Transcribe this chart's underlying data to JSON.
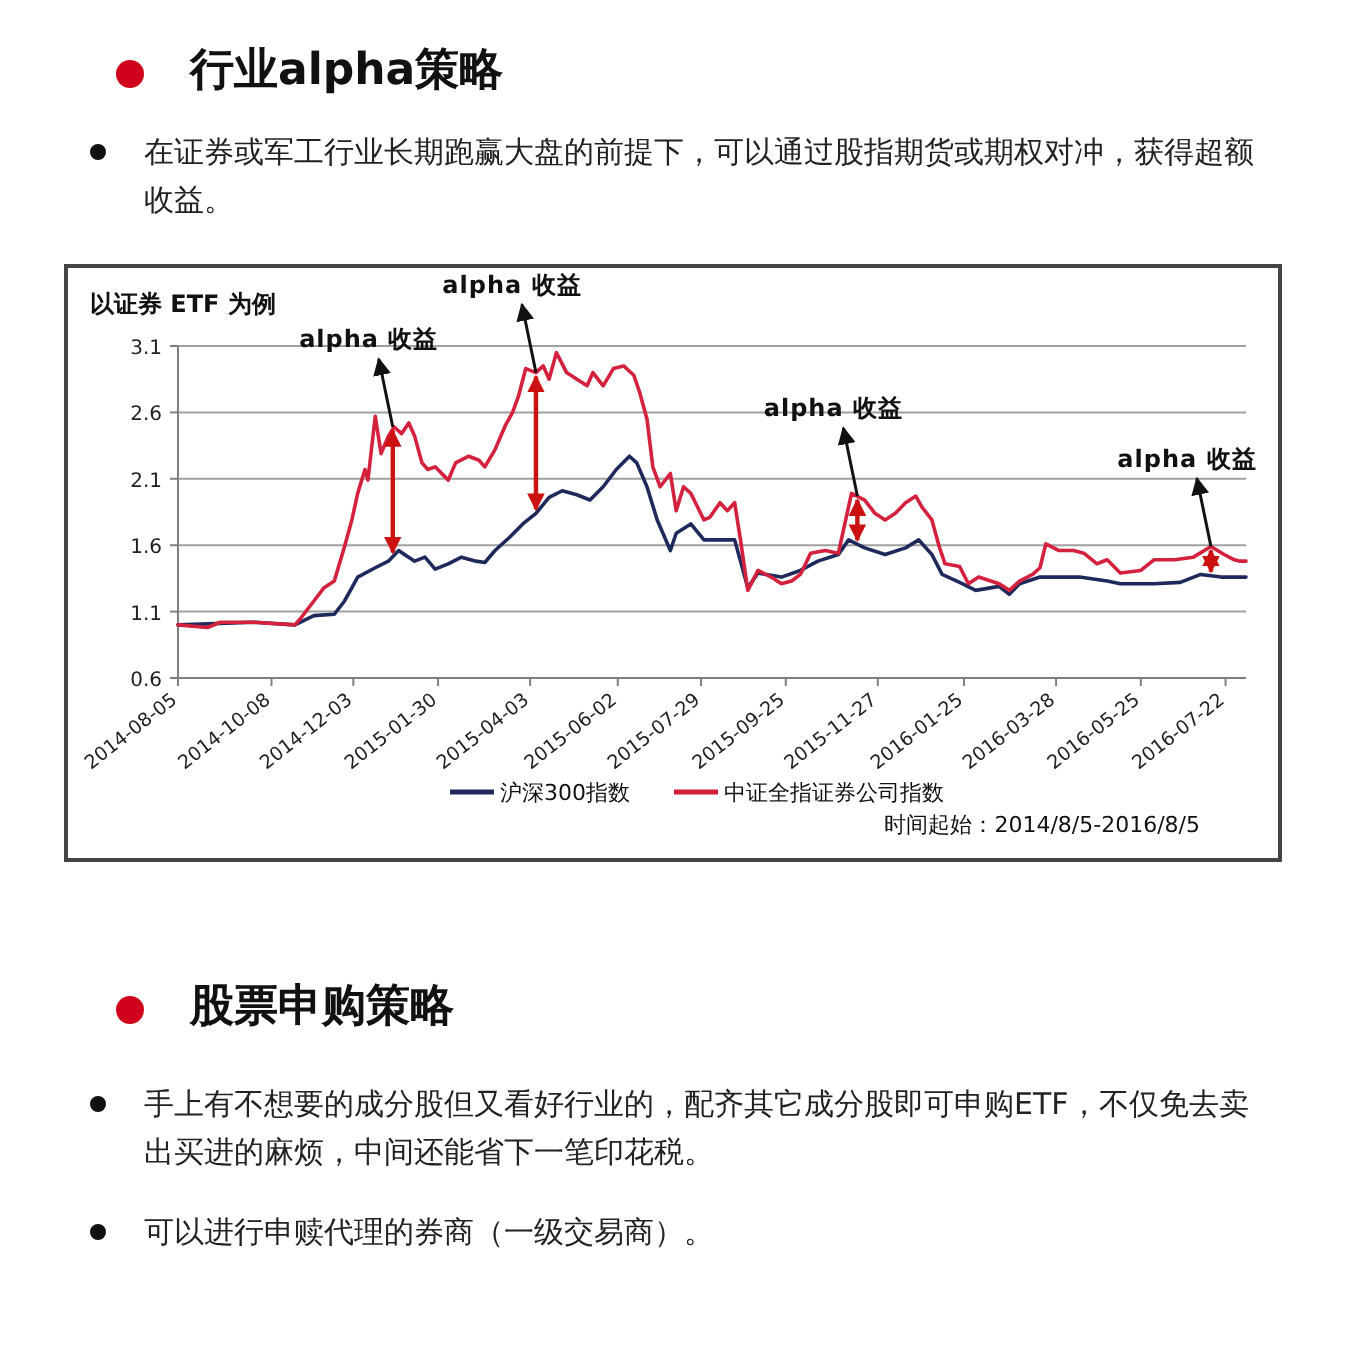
{
  "chart_data": {
    "type": "line",
    "title": "以证券 ETF 为例",
    "xlim": [
      "2014-08-05",
      "2016-08-05"
    ],
    "xticks": [
      "2014-08-05",
      "2014-10-08",
      "2014-12-03",
      "2015-01-30",
      "2015-04-03",
      "2015-06-02",
      "2015-07-29",
      "2015-09-25",
      "2015-11-27",
      "2016-01-25",
      "2016-03-28",
      "2016-05-25",
      "2016-07-22"
    ],
    "ylim": [
      0.6,
      3.1
    ],
    "yticks": [
      0.6,
      1.1,
      1.6,
      2.1,
      2.6,
      3.1
    ],
    "grid": "y",
    "legend": "bottom",
    "marker": "none",
    "line_style": "solid",
    "series": [
      {
        "name": "沪深300指数",
        "color": "#1f2a5c",
        "x": [
          "2014-08-05",
          "2014-09-26",
          "2014-10-24",
          "2014-11-06",
          "2014-11-20",
          "2014-11-27",
          "2014-12-06",
          "2014-12-18",
          "2014-12-27",
          "2015-01-03",
          "2015-01-07",
          "2015-01-14",
          "2015-01-21",
          "2015-01-28",
          "2015-02-06",
          "2015-02-15",
          "2015-02-25",
          "2015-03-03",
          "2015-03-10",
          "2015-03-20",
          "2015-03-29",
          "2015-04-07",
          "2015-04-16",
          "2015-04-25",
          "2015-05-05",
          "2015-05-14",
          "2015-05-23",
          "2015-06-01",
          "2015-06-10",
          "2015-06-15",
          "2015-06-22",
          "2015-06-29",
          "2015-07-08",
          "2015-07-12",
          "2015-07-22",
          "2015-07-31",
          "2015-08-09",
          "2015-08-21",
          "2015-08-25",
          "2015-08-30",
          "2015-09-06",
          "2015-09-22",
          "2015-10-05",
          "2015-10-17",
          "2015-10-31",
          "2015-11-07",
          "2015-11-18",
          "2015-12-02",
          "2015-12-16",
          "2015-12-25",
          "2016-01-03",
          "2016-01-10",
          "2016-01-22",
          "2016-02-02",
          "2016-02-18",
          "2016-02-25",
          "2016-03-03",
          "2016-03-17",
          "2016-03-30",
          "2016-04-13",
          "2016-05-02",
          "2016-05-11",
          "2016-06-03",
          "2016-06-21",
          "2016-07-05",
          "2016-07-19",
          "2016-08-01",
          "2016-08-05"
        ],
        "values": [
          1.0,
          1.02,
          1.0,
          1.07,
          1.08,
          1.18,
          1.36,
          1.43,
          1.48,
          1.56,
          1.53,
          1.48,
          1.51,
          1.42,
          1.46,
          1.51,
          1.48,
          1.47,
          1.56,
          1.66,
          1.76,
          1.84,
          1.96,
          2.01,
          1.98,
          1.94,
          2.04,
          2.17,
          2.27,
          2.22,
          2.04,
          1.79,
          1.56,
          1.69,
          1.76,
          1.64,
          1.64,
          1.64,
          1.48,
          1.28,
          1.39,
          1.36,
          1.41,
          1.48,
          1.53,
          1.64,
          1.58,
          1.53,
          1.58,
          1.64,
          1.53,
          1.38,
          1.32,
          1.26,
          1.29,
          1.23,
          1.31,
          1.36,
          1.36,
          1.36,
          1.33,
          1.31,
          1.31,
          1.32,
          1.38,
          1.36,
          1.36,
          1.36
        ]
      },
      {
        "name": "中证全指证券公司指数",
        "color": "#d4213d",
        "x": [
          "2014-08-05",
          "2014-08-25",
          "2014-09-03",
          "2014-09-26",
          "2014-10-24",
          "2014-10-28",
          "2014-11-06",
          "2014-11-13",
          "2014-11-20",
          "2014-11-27",
          "2014-12-02",
          "2014-12-06",
          "2014-12-11",
          "2014-12-13",
          "2014-12-18",
          "2014-12-22",
          "2014-12-27",
          "2014-12-31",
          "2015-01-05",
          "2015-01-10",
          "2015-01-14",
          "2015-01-19",
          "2015-01-23",
          "2015-01-28",
          "2015-02-06",
          "2015-02-11",
          "2015-02-20",
          "2015-02-27",
          "2015-03-03",
          "2015-03-10",
          "2015-03-17",
          "2015-03-22",
          "2015-03-26",
          "2015-03-31",
          "2015-04-07",
          "2015-04-12",
          "2015-04-16",
          "2015-04-21",
          "2015-04-28",
          "2015-05-05",
          "2015-05-12",
          "2015-05-16",
          "2015-05-23",
          "2015-05-30",
          "2015-06-06",
          "2015-06-13",
          "2015-06-17",
          "2015-06-22",
          "2015-06-26",
          "2015-07-01",
          "2015-07-08",
          "2015-07-12",
          "2015-07-17",
          "2015-07-22",
          "2015-07-31",
          "2015-08-04",
          "2015-08-11",
          "2015-08-16",
          "2015-08-21",
          "2015-08-25",
          "2015-08-30",
          "2015-09-06",
          "2015-09-15",
          "2015-09-22",
          "2015-09-29",
          "2015-10-05",
          "2015-10-12",
          "2015-10-22",
          "2015-10-31",
          "2015-11-04",
          "2015-11-09",
          "2015-11-18",
          "2015-11-25",
          "2015-12-02",
          "2015-12-09",
          "2015-12-16",
          "2015-12-23",
          "2015-12-27",
          "2016-01-03",
          "2016-01-08",
          "2016-01-12",
          "2016-01-22",
          "2016-01-28",
          "2016-02-04",
          "2016-02-18",
          "2016-02-25",
          "2016-03-03",
          "2016-03-12",
          "2016-03-17",
          "2016-03-21",
          "2016-03-30",
          "2016-04-09",
          "2016-04-16",
          "2016-04-25",
          "2016-05-02",
          "2016-05-11",
          "2016-05-25",
          "2016-06-03",
          "2016-06-17",
          "2016-06-30",
          "2016-07-12",
          "2016-07-21",
          "2016-07-28",
          "2016-08-01",
          "2016-08-05"
        ],
        "values": [
          1.0,
          0.98,
          1.02,
          1.02,
          1.0,
          1.05,
          1.18,
          1.28,
          1.33,
          1.59,
          1.79,
          1.99,
          2.17,
          2.09,
          2.57,
          2.29,
          2.42,
          2.49,
          2.44,
          2.52,
          2.42,
          2.22,
          2.17,
          2.19,
          2.09,
          2.22,
          2.27,
          2.24,
          2.19,
          2.32,
          2.5,
          2.6,
          2.72,
          2.93,
          2.9,
          2.95,
          2.85,
          3.05,
          2.9,
          2.85,
          2.8,
          2.9,
          2.8,
          2.93,
          2.95,
          2.88,
          2.75,
          2.55,
          2.19,
          2.04,
          2.14,
          1.86,
          2.04,
          1.99,
          1.79,
          1.81,
          1.92,
          1.86,
          1.92,
          1.64,
          1.26,
          1.41,
          1.36,
          1.31,
          1.33,
          1.38,
          1.54,
          1.56,
          1.54,
          1.74,
          1.99,
          1.94,
          1.84,
          1.79,
          1.84,
          1.92,
          1.97,
          1.89,
          1.79,
          1.59,
          1.46,
          1.44,
          1.31,
          1.36,
          1.31,
          1.26,
          1.33,
          1.38,
          1.43,
          1.61,
          1.56,
          1.56,
          1.54,
          1.46,
          1.49,
          1.39,
          1.41,
          1.49,
          1.49,
          1.51,
          1.59,
          1.53,
          1.49,
          1.48,
          1.48
        ]
      }
    ],
    "annotations": [
      {
        "text": "alpha 收益",
        "x": "2014-12-30",
        "y": 2.49
      },
      {
        "text": "alpha 收益",
        "x": "2015-04-07",
        "y": 2.9
      },
      {
        "text": "alpha 收益",
        "x": "2015-11-13",
        "y": 1.97
      },
      {
        "text": "alpha 收益",
        "x": "2016-07-12",
        "y": 1.59
      },
      "时间起始：2014/8/5-2016/8/5",
      "行业alpha策略",
      "在证券或军工行业长期跑赢大盘的前提下，可以通过股指期货或期权对冲，获得超额收益。",
      "股票申购策略",
      "手上有不想要的成分股但又看好行业的，配齐其它成分股即可申购ETF，不仅免去卖出买进的麻烦，中间还能省下一笔印花税。",
      "可以进行申赎代理的券商（一级交易商）。"
    ]
  }
}
